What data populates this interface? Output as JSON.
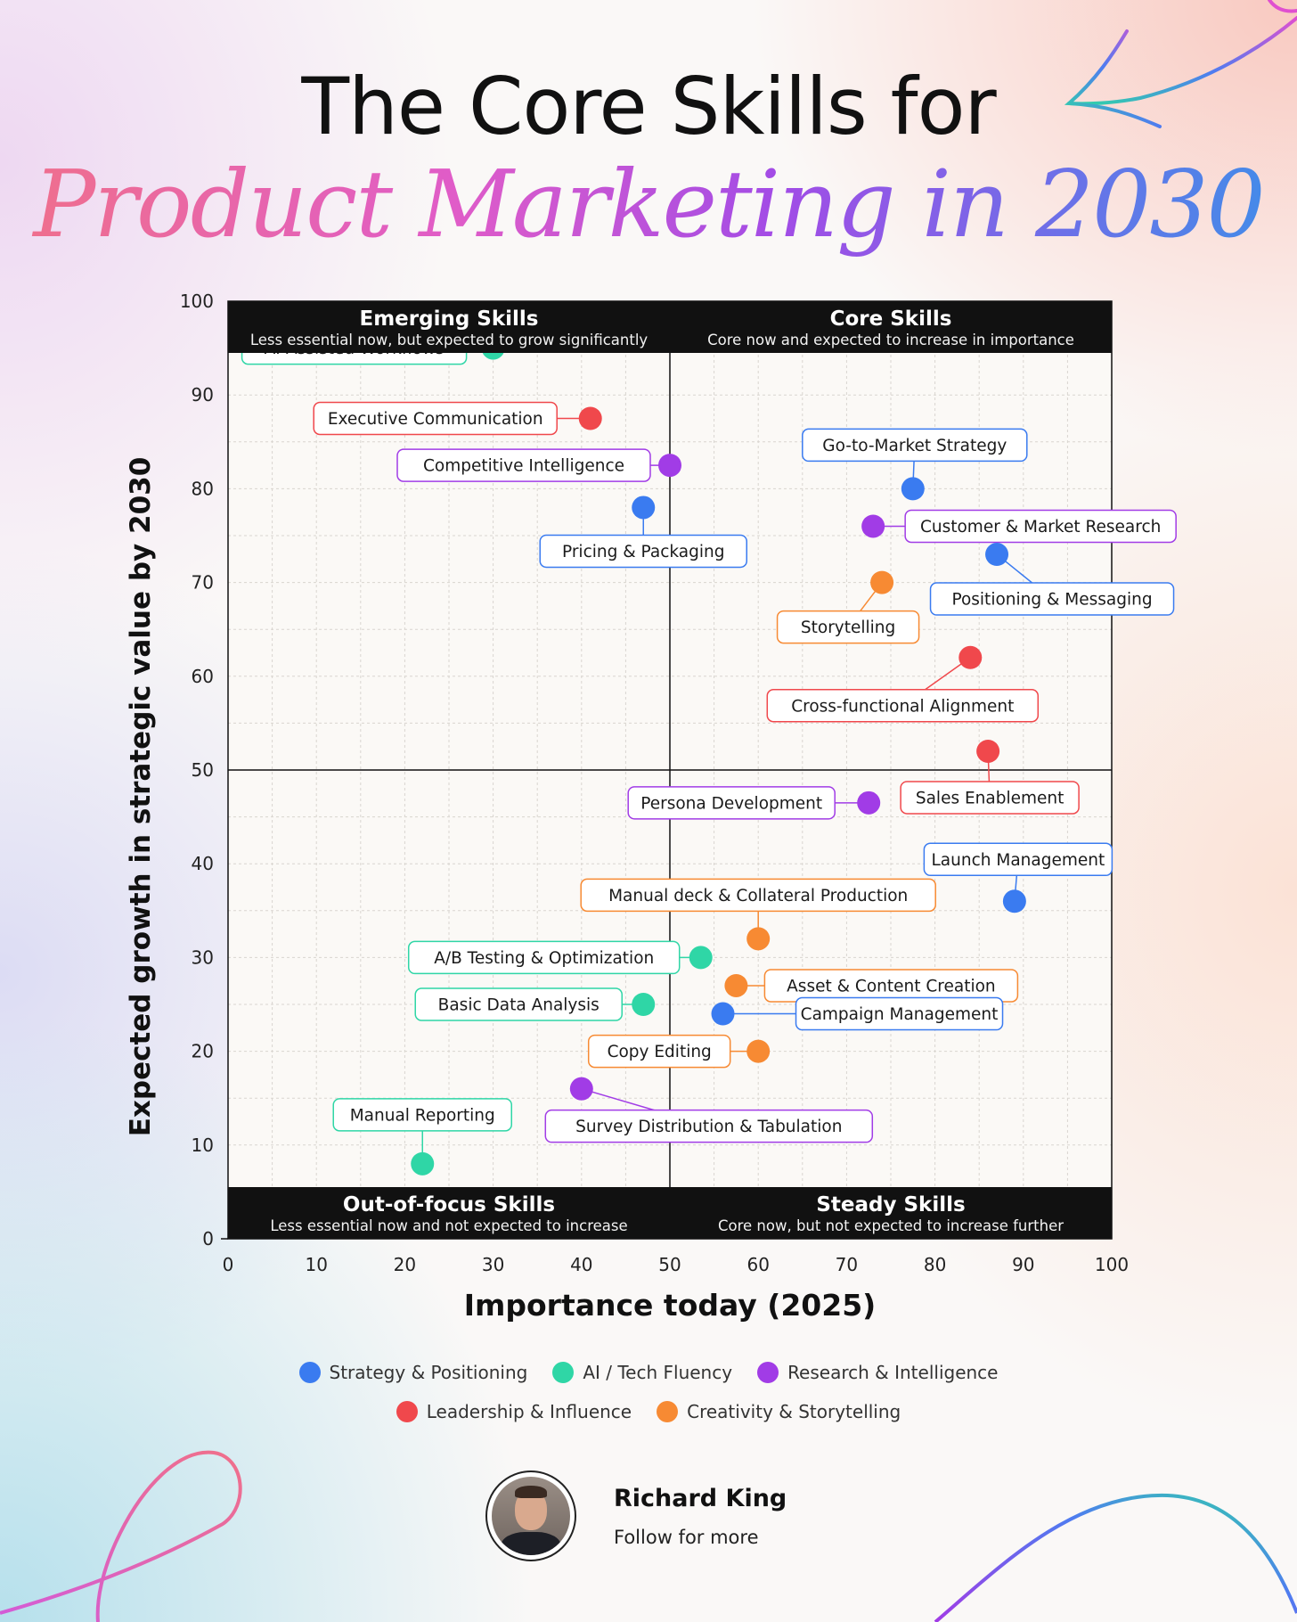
{
  "header": {
    "title_line1": "The Core Skills for",
    "title_line2": "Product Marketing in 2030"
  },
  "colors": {
    "strategy": "#3a7bf0",
    "ai": "#2fd6a6",
    "research": "#a13ce6",
    "leadership": "#f0484c",
    "creativity": "#f78a33"
  },
  "chart_data": {
    "type": "scatter",
    "xlabel": "Importance today (2025)",
    "ylabel": "Expected growth in strategic value by 2030",
    "xlim": [
      0,
      100
    ],
    "ylim": [
      0,
      100
    ],
    "xticks": [
      0,
      10,
      20,
      30,
      40,
      50,
      60,
      70,
      80,
      90,
      100
    ],
    "yticks": [
      0,
      10,
      20,
      30,
      40,
      50,
      60,
      70,
      80,
      90,
      100
    ],
    "grid": true,
    "legend_position": "bottom",
    "quadrants": [
      {
        "title": "Emerging Skills",
        "subtitle": "Less essential now, but expected to grow significantly",
        "position": "top-left"
      },
      {
        "title": "Core Skills",
        "subtitle": "Core now and expected to increase in importance",
        "position": "top-right"
      },
      {
        "title": "Out-of-focus Skills",
        "subtitle": "Less essential now and not expected to increase",
        "position": "bottom-left"
      },
      {
        "title": "Steady Skills",
        "subtitle": "Core now, but not expected to increase further",
        "position": "bottom-right"
      }
    ],
    "series": [
      {
        "name": "Strategy & Positioning",
        "color": "#3a7bf0"
      },
      {
        "name": "AI / Tech Fluency",
        "color": "#2fd6a6"
      },
      {
        "name": "Research & Intelligence",
        "color": "#a13ce6"
      },
      {
        "name": "Leadership & Influence",
        "color": "#f0484c"
      },
      {
        "name": "Creativity & Storytelling",
        "color": "#f78a33"
      }
    ],
    "points": [
      {
        "label": "AI-Assisted Workflows",
        "x": 30,
        "y": 95,
        "series": 1
      },
      {
        "label": "Executive Communication",
        "x": 41,
        "y": 87.5,
        "series": 3
      },
      {
        "label": "Competitive Intelligence",
        "x": 50,
        "y": 82.5,
        "series": 2
      },
      {
        "label": "Pricing & Packaging",
        "x": 47,
        "y": 78,
        "series": 0
      },
      {
        "label": "Go-to-Market Strategy",
        "x": 77.5,
        "y": 80,
        "series": 0
      },
      {
        "label": "Customer & Market Research",
        "x": 73,
        "y": 76,
        "series": 2
      },
      {
        "label": "Positioning & Messaging",
        "x": 87,
        "y": 73,
        "series": 0
      },
      {
        "label": "Storytelling",
        "x": 74,
        "y": 70,
        "series": 4
      },
      {
        "label": "Cross-functional Alignment",
        "x": 84,
        "y": 62,
        "series": 3
      },
      {
        "label": "Sales Enablement",
        "x": 86,
        "y": 52,
        "series": 3
      },
      {
        "label": "Persona Development",
        "x": 72.5,
        "y": 46.5,
        "series": 2
      },
      {
        "label": "Launch Management",
        "x": 89,
        "y": 36,
        "series": 0
      },
      {
        "label": "Manual deck & Collateral Production",
        "x": 60,
        "y": 32,
        "series": 4
      },
      {
        "label": "A/B Testing & Optimization",
        "x": 53.5,
        "y": 30,
        "series": 1
      },
      {
        "label": "Asset & Content Creation",
        "x": 57.5,
        "y": 27,
        "series": 4
      },
      {
        "label": "Basic Data Analysis",
        "x": 47,
        "y": 25,
        "series": 1
      },
      {
        "label": "Campaign Management",
        "x": 56,
        "y": 24,
        "series": 0
      },
      {
        "label": "Copy Editing",
        "x": 60,
        "y": 20,
        "series": 4
      },
      {
        "label": "Survey Distribution & Tabulation",
        "x": 40,
        "y": 16,
        "series": 2
      },
      {
        "label": "Manual Reporting",
        "x": 22,
        "y": 8,
        "series": 1
      }
    ]
  },
  "footer": {
    "author_name": "Richard King",
    "author_sub": "Follow for more"
  }
}
